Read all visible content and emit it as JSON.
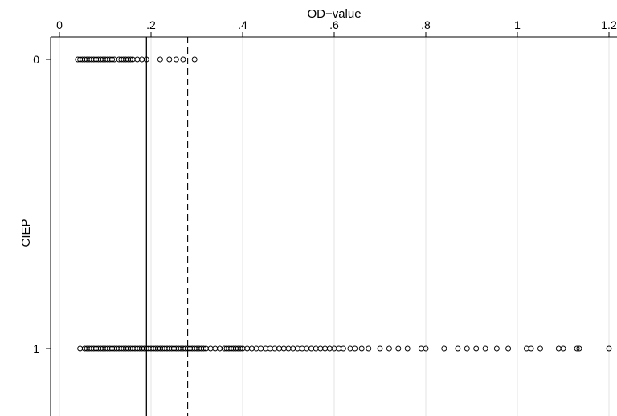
{
  "chart_data": {
    "type": "scatter",
    "title": "",
    "xlabel": "OD−value",
    "ylabel": "CIEP",
    "xlim": [
      -0.01,
      1.21
    ],
    "ylim": [
      0,
      1
    ],
    "x_ticks": [
      0,
      0.2,
      0.4,
      0.6,
      0.8,
      1,
      1.2
    ],
    "x_tick_labels": [
      "0",
      ".2",
      ".4",
      ".6",
      ".8",
      "1",
      "1.2"
    ],
    "y_ticks": [
      0,
      1
    ],
    "y_tick_labels": [
      "0",
      "1"
    ],
    "x_axis_position": "top",
    "y_axis_inverted": true,
    "grid": true,
    "reference_lines": [
      {
        "x": 0.19,
        "style": "solid"
      },
      {
        "x": 0.28,
        "style": "dashed"
      }
    ],
    "series": [
      {
        "y": 0,
        "x": [
          0.04,
          0.045,
          0.05,
          0.055,
          0.06,
          0.065,
          0.07,
          0.075,
          0.08,
          0.085,
          0.09,
          0.095,
          0.1,
          0.105,
          0.11,
          0.115,
          0.12,
          0.13,
          0.135,
          0.14,
          0.145,
          0.15,
          0.155,
          0.16,
          0.17,
          0.18,
          0.19,
          0.22,
          0.24,
          0.255,
          0.27,
          0.295
        ]
      },
      {
        "y": 1,
        "x": [
          0.045,
          0.055,
          0.06,
          0.065,
          0.07,
          0.075,
          0.08,
          0.085,
          0.09,
          0.095,
          0.1,
          0.105,
          0.11,
          0.115,
          0.12,
          0.125,
          0.13,
          0.135,
          0.14,
          0.145,
          0.15,
          0.155,
          0.16,
          0.165,
          0.17,
          0.175,
          0.18,
          0.185,
          0.19,
          0.195,
          0.2,
          0.205,
          0.21,
          0.215,
          0.22,
          0.225,
          0.23,
          0.235,
          0.24,
          0.245,
          0.25,
          0.255,
          0.26,
          0.265,
          0.27,
          0.275,
          0.28,
          0.285,
          0.29,
          0.295,
          0.3,
          0.305,
          0.31,
          0.315,
          0.32,
          0.33,
          0.34,
          0.35,
          0.36,
          0.365,
          0.37,
          0.375,
          0.38,
          0.385,
          0.39,
          0.395,
          0.4,
          0.41,
          0.42,
          0.43,
          0.44,
          0.45,
          0.46,
          0.47,
          0.48,
          0.49,
          0.5,
          0.51,
          0.52,
          0.53,
          0.54,
          0.55,
          0.56,
          0.57,
          0.58,
          0.59,
          0.6,
          0.61,
          0.62,
          0.635,
          0.645,
          0.66,
          0.675,
          0.7,
          0.72,
          0.74,
          0.76,
          0.79,
          0.8,
          0.84,
          0.87,
          0.89,
          0.91,
          0.93,
          0.955,
          0.98,
          1.02,
          1.03,
          1.05,
          1.09,
          1.1,
          1.13,
          1.135,
          1.2
        ]
      }
    ]
  }
}
